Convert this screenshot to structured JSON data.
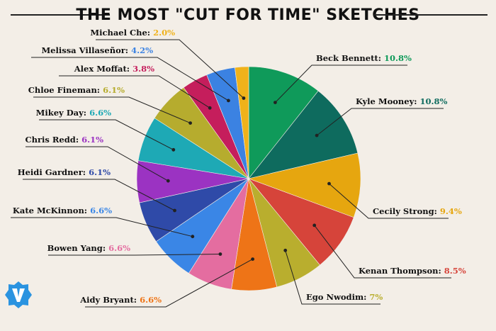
{
  "chart_data": {
    "type": "pie",
    "title": "THE MOST \"CUT FOR TIME\" SKETCHES",
    "slices": [
      {
        "label": "Beck Bennett",
        "pct_text": "10.8%",
        "value": 10.8,
        "color": "#0f9a5a"
      },
      {
        "label": "Kyle Mooney",
        "pct_text": "10.8%",
        "value": 10.8,
        "color": "#0e6b5e"
      },
      {
        "label": "Cecily Strong",
        "pct_text": "9.4%",
        "value": 9.4,
        "color": "#e6a60f"
      },
      {
        "label": "Kenan Thompson",
        "pct_text": "8.5%",
        "value": 8.5,
        "color": "#d6443a"
      },
      {
        "label": "Ego Nwodim",
        "pct_text": "7%",
        "value": 7.0,
        "color": "#b9ae2e"
      },
      {
        "label": "Aidy Bryant",
        "pct_text": "6.6%",
        "value": 6.6,
        "color": "#ee7417"
      },
      {
        "label": "Bowen Yang",
        "pct_text": "6.6%",
        "value": 6.6,
        "color": "#e46da0"
      },
      {
        "label": "Kate McKinnon",
        "pct_text": "6.6%",
        "value": 6.6,
        "color": "#3a86e6"
      },
      {
        "label": "Heidi Gardner",
        "pct_text": "6.1%",
        "value": 6.1,
        "color": "#2f4aa8"
      },
      {
        "label": "Chris Redd",
        "pct_text": "6.1%",
        "value": 6.1,
        "color": "#9b33c2"
      },
      {
        "label": "Mikey Day",
        "pct_text": "6.6%",
        "value": 6.6,
        "color": "#1ea9b5"
      },
      {
        "label": "Chloe Fineman",
        "pct_text": "6.1%",
        "value": 6.1,
        "color": "#b6ac2e"
      },
      {
        "label": "Alex Moffat",
        "pct_text": "3.8%",
        "value": 3.8,
        "color": "#c51e5c"
      },
      {
        "label": "Melissa Villaseñor",
        "pct_text": "4.2%",
        "value": 4.2,
        "color": "#3b82e2"
      },
      {
        "label": "Michael Che",
        "pct_text": "2.0%",
        "value": 2.0,
        "color": "#f0b21a"
      }
    ]
  },
  "colors": {
    "background": "#f3eee7",
    "label_text": "#111111",
    "leader_line": "#222222",
    "logo_blue": "#2a93e0"
  },
  "logo_icon": "v-logo-icon"
}
